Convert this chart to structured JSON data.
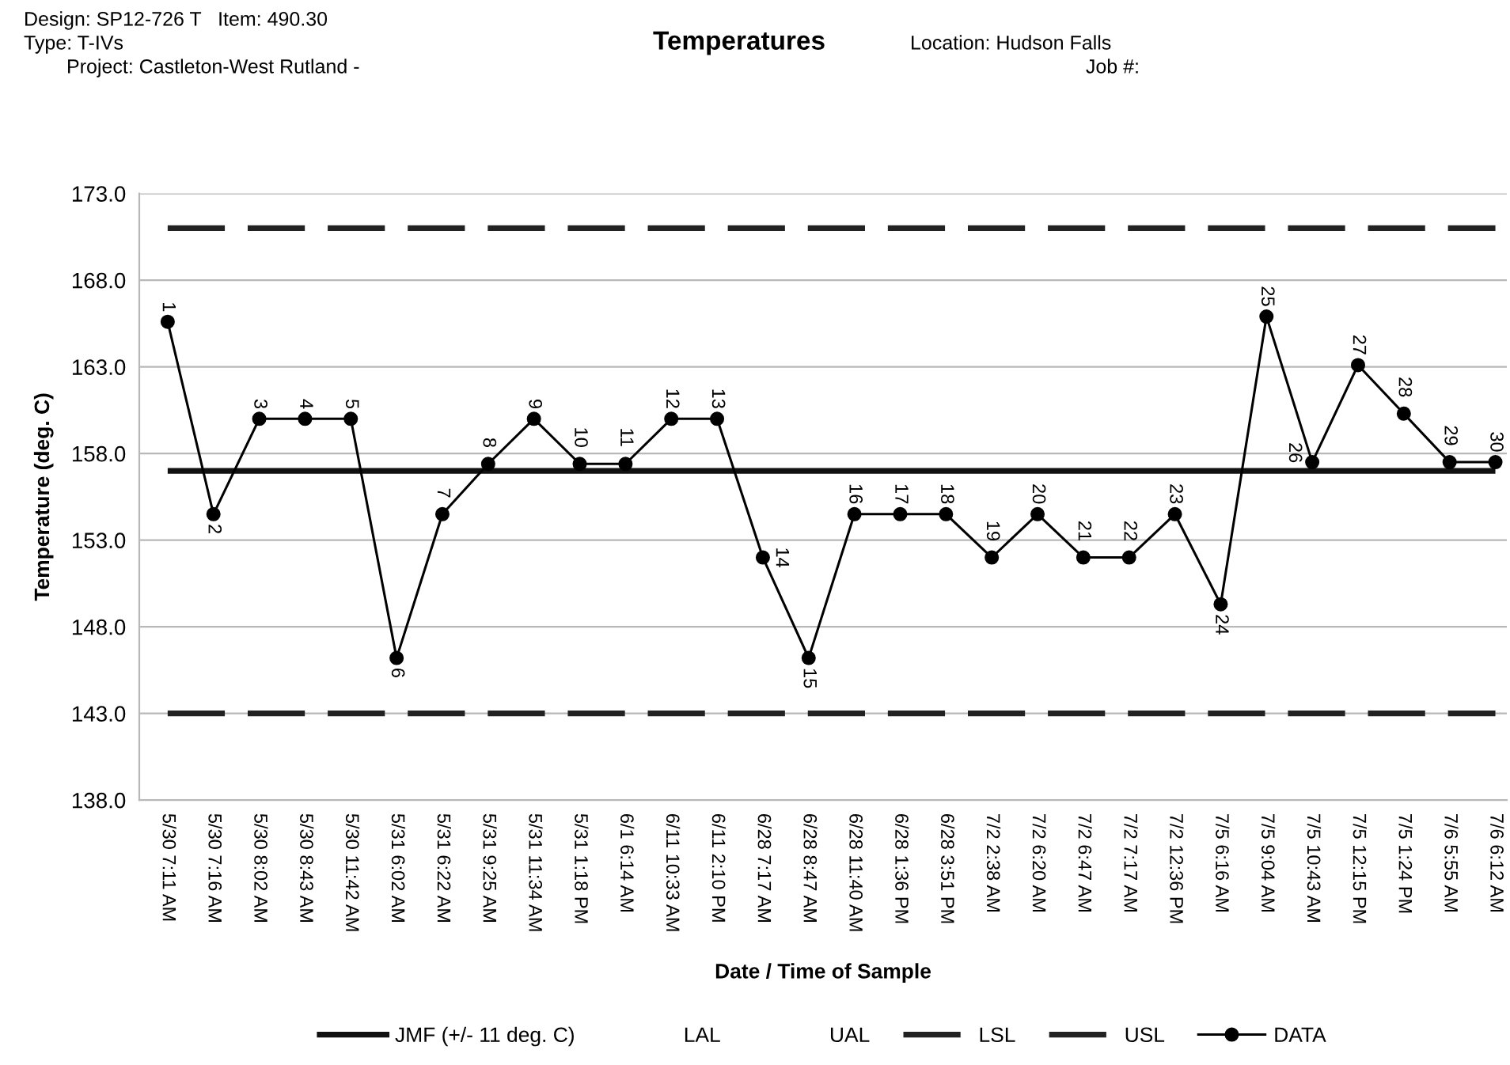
{
  "chart_data": {
    "type": "line",
    "title": "Temperatures",
    "xlabel": "Date / Time of Sample",
    "ylabel": "Temperature (deg. C)",
    "annotations": [
      "Design: SP12-726 T   Item: 490.30",
      "Type: T-IVs",
      "Project: Castleton-West Rutland -",
      "Location: Hudson Falls",
      "Job #:",
      {
        "text": "1",
        "x": "5/30 7:11 AM",
        "y": 165.6
      },
      {
        "text": "2",
        "x": "5/30 7:16 AM",
        "y": 154.5
      },
      {
        "text": "3",
        "x": "5/30 8:02 AM",
        "y": 160
      },
      {
        "text": "4",
        "x": "5/30 8:43 AM",
        "y": 160
      },
      {
        "text": "5",
        "x": "5/30 11:42 AM",
        "y": 160
      },
      {
        "text": "6",
        "x": "5/31 6:02 AM",
        "y": 146.2
      },
      {
        "text": "7",
        "x": "5/31 6:22 AM",
        "y": 154.5
      },
      {
        "text": "8",
        "x": "5/31 9:25 AM",
        "y": 157.4
      },
      {
        "text": "9",
        "x": "5/31 11:34 AM",
        "y": 160
      },
      {
        "text": "10",
        "x": "5/31 1:18 PM",
        "y": 157.4
      },
      {
        "text": "11",
        "x": "6/1 6:14 AM",
        "y": 157.4
      },
      {
        "text": "12",
        "x": "6/11 10:33 AM",
        "y": 160
      },
      {
        "text": "13",
        "x": "6/11 2:10 PM",
        "y": 160
      },
      {
        "text": "14",
        "x": "6/28 7:17 AM",
        "y": 152
      },
      {
        "text": "15",
        "x": "6/28 8:47 AM",
        "y": 146.2
      },
      {
        "text": "16",
        "x": "6/28 11:40 AM",
        "y": 154.5
      },
      {
        "text": "17",
        "x": "6/28 1:36 PM",
        "y": 154.5
      },
      {
        "text": "18",
        "x": "6/28 3:51 PM",
        "y": 154.5
      },
      {
        "text": "19",
        "x": "7/2 2:38 AM",
        "y": 152
      },
      {
        "text": "20",
        "x": "7/2 6:20 AM",
        "y": 154.5
      },
      {
        "text": "21",
        "x": "7/2 6:47 AM",
        "y": 152
      },
      {
        "text": "22",
        "x": "7/2 7:17 AM",
        "y": 152
      },
      {
        "text": "23",
        "x": "7/2 12:36 PM",
        "y": 154.5
      },
      {
        "text": "24",
        "x": "7/5 6:16 AM",
        "y": 149.3
      },
      {
        "text": "25",
        "x": "7/5 9:04 AM",
        "y": 165.9
      },
      {
        "text": "26",
        "x": "7/5 10:43 AM",
        "y": 157.5
      },
      {
        "text": "27",
        "x": "7/5 12:15 PM",
        "y": 163.1
      },
      {
        "text": "28",
        "x": "7/5 1:24 PM",
        "y": 160.3
      },
      {
        "text": "29",
        "x": "7/6 5:55 AM",
        "y": 157.5
      },
      {
        "text": "30",
        "x": "7/6 6:12 AM",
        "y": 157.5
      }
    ],
    "categories": [
      "5/30 7:11 AM",
      "5/30 7:16 AM",
      "5/30 8:02 AM",
      "5/30 8:43 AM",
      "5/30 11:42 AM",
      "5/31 6:02 AM",
      "5/31 6:22 AM",
      "5/31 9:25 AM",
      "5/31 11:34 AM",
      "5/31 1:18 PM",
      "6/1 6:14 AM",
      "6/11 10:33 AM",
      "6/11 2:10 PM",
      "6/28 7:17 AM",
      "6/28 8:47 AM",
      "6/28 11:40 AM",
      "6/28 1:36 PM",
      "6/28 3:51 PM",
      "7/2 2:38 AM",
      "7/2 6:20 AM",
      "7/2 6:47 AM",
      "7/2 7:17 AM",
      "7/2 12:36 PM",
      "7/5 6:16 AM",
      "7/5 9:04 AM",
      "7/5 10:43 AM",
      "7/5 12:15 PM",
      "7/5 1:24 PM",
      "7/6 5:55 AM",
      "7/6 6:12 AM"
    ],
    "series": [
      {
        "name": "DATA",
        "color": "#000000",
        "values": [
          165.6,
          154.5,
          160,
          160,
          160,
          146.2,
          154.5,
          157.4,
          160,
          157.4,
          157.4,
          160,
          160,
          152,
          146.2,
          154.5,
          154.5,
          154.5,
          152,
          154.5,
          152,
          152,
          154.5,
          149.3,
          165.9,
          157.5,
          163.1,
          160.3,
          157.5,
          157.5
        ]
      }
    ],
    "ylim": [
      138,
      173
    ],
    "yticks": [
      {
        "value": 138,
        "label": "138.0"
      },
      {
        "value": 143,
        "label": "143.0"
      },
      {
        "value": 148,
        "label": "148.0"
      },
      {
        "value": 153,
        "label": "153.0"
      },
      {
        "value": 158,
        "label": "158.0"
      },
      {
        "value": 163,
        "label": "163.0"
      },
      {
        "value": 168,
        "label": "168.0"
      },
      {
        "value": 173,
        "label": "173.0"
      }
    ],
    "grid": "y",
    "legend": "bottom",
    "marker": "circle",
    "line_style": "solid",
    "ref_lines": [
      {
        "axis": "y",
        "value": 157,
        "label": "JMF (+/- 11 deg. C)",
        "color": "#111111",
        "line_style": "solid"
      },
      {
        "axis": "y",
        "value": null,
        "label": "LAL"
      },
      {
        "axis": "y",
        "value": null,
        "label": "UAL"
      },
      {
        "axis": "y",
        "value": 143,
        "label": "LSL",
        "color": "#222222",
        "line_style": "dashed"
      },
      {
        "axis": "y",
        "value": 171,
        "label": "USL",
        "color": "#222222",
        "line_style": "dashed"
      }
    ]
  }
}
